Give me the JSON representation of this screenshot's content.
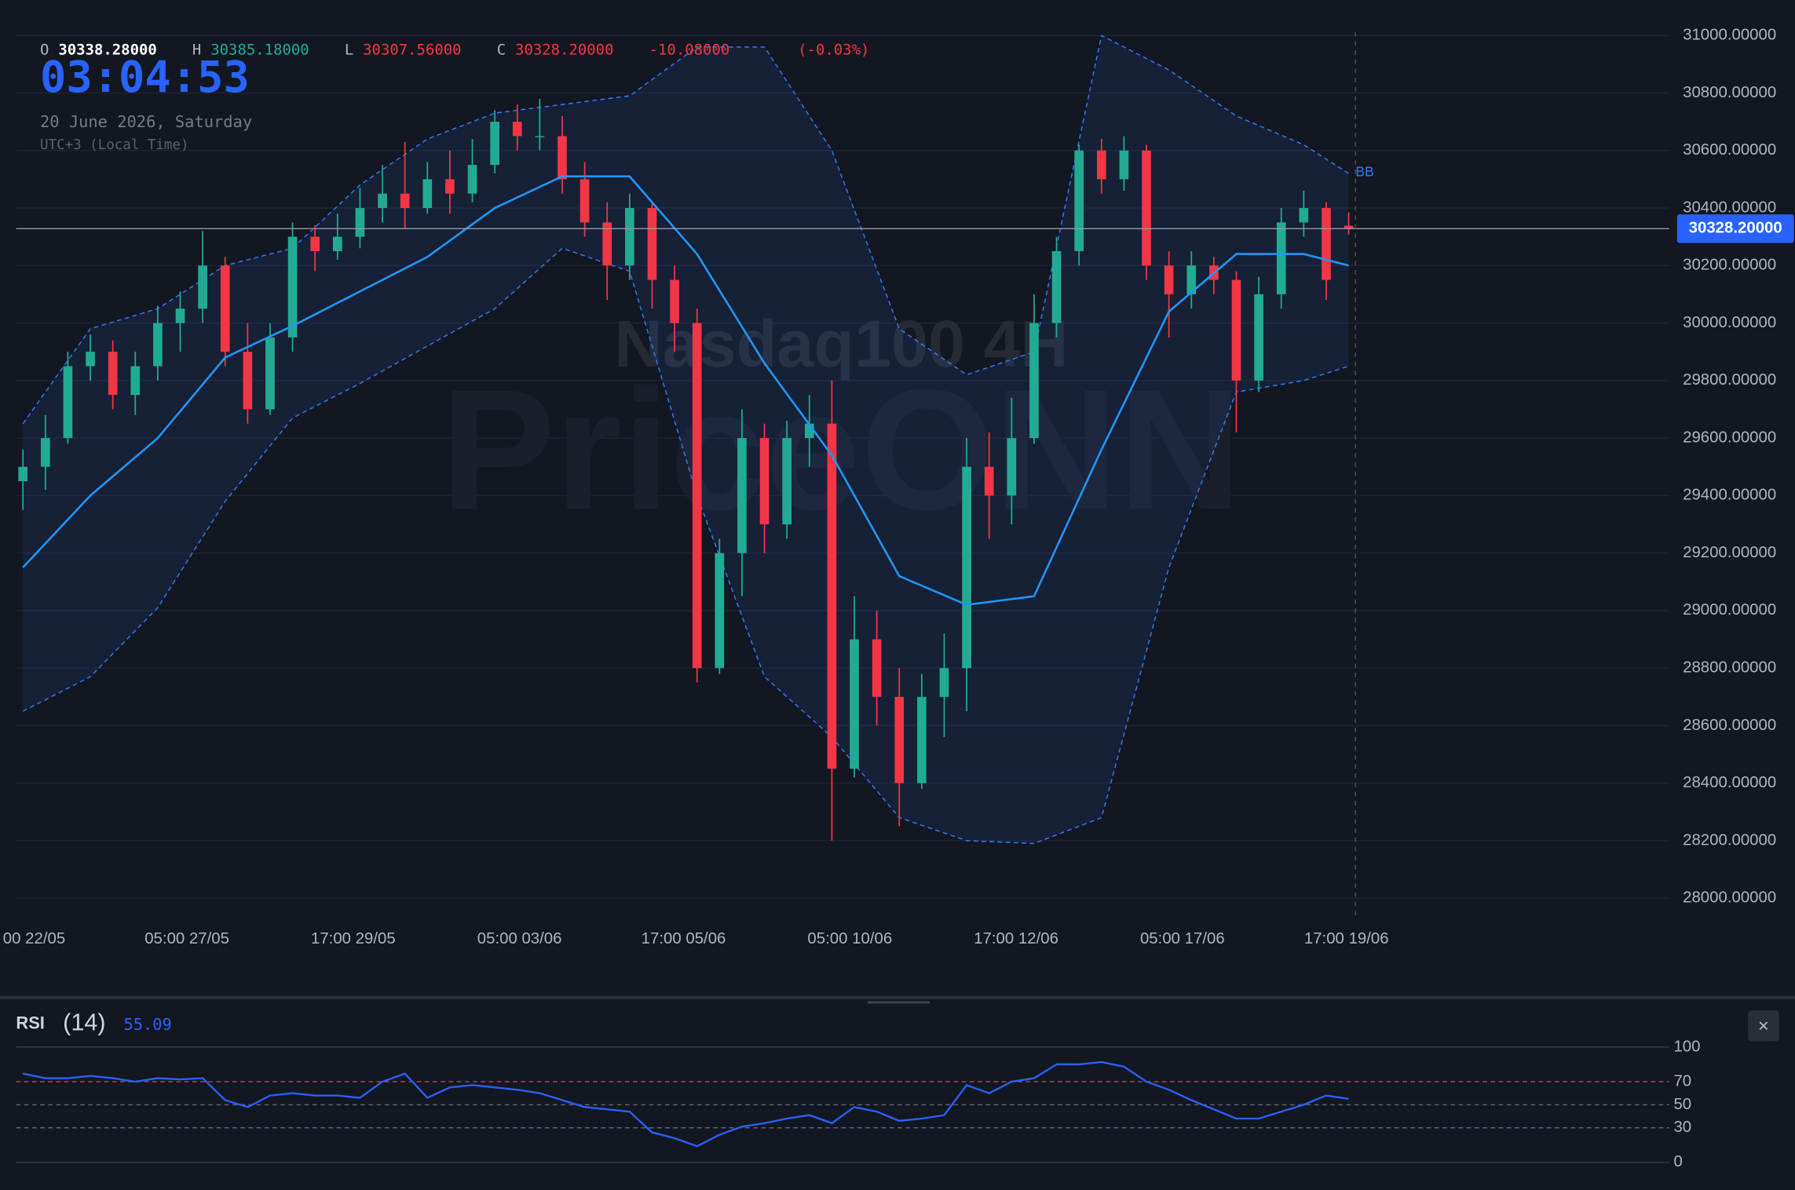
{
  "header": {
    "o_label": "O",
    "open": "30338.28000",
    "h_label": "H",
    "high": "30385.18000",
    "l_label": "L",
    "low": "30307.56000",
    "c_label": "C",
    "close": "30328.20000",
    "change": "-10.08000",
    "change_pct": "(-0.03%)",
    "clock": "03:04:53",
    "date": "20 June 2026, Saturday",
    "timezone": "UTC+3 (Local Time)",
    "close_button": "×"
  },
  "chart_data": [
    {
      "type": "candlestick",
      "title": "Nasdaq100 4H",
      "watermark": "PriceONN",
      "colors": {
        "up": "#22ab94",
        "down": "#f23645"
      },
      "xlim": [
        -1.02,
        73.36
      ],
      "ylim": [
        27940,
        31012
      ],
      "grid": true,
      "xticks": [
        {
          "value": 0.5,
          "label": "00 22/05"
        },
        {
          "value": 7.3,
          "label": "05:00 27/05"
        },
        {
          "value": 14.7,
          "label": "17:00 29/05"
        },
        {
          "value": 22.1,
          "label": "05:00 03/06"
        },
        {
          "value": 29.4,
          "label": "17:00 05/06"
        },
        {
          "value": 36.8,
          "label": "05:00 10/06"
        },
        {
          "value": 44.2,
          "label": "17:00 12/06"
        },
        {
          "value": 51.6,
          "label": "05:00 17/06"
        },
        {
          "value": 58.9,
          "label": "17:00 19/06"
        }
      ],
      "yticks": [
        {
          "value": 28000,
          "label": "28000.00000"
        },
        {
          "value": 28200,
          "label": "28200.00000"
        },
        {
          "value": 28400,
          "label": "28400.00000"
        },
        {
          "value": 28600,
          "label": "28600.00000"
        },
        {
          "value": 28800,
          "label": "28800.00000"
        },
        {
          "value": 29000,
          "label": "29000.00000"
        },
        {
          "value": 29200,
          "label": "29200.00000"
        },
        {
          "value": 29400,
          "label": "29400.00000"
        },
        {
          "value": 29600,
          "label": "29600.00000"
        },
        {
          "value": 29800,
          "label": "29800.00000"
        },
        {
          "value": 30000,
          "label": "30000.00000"
        },
        {
          "value": 30200,
          "label": "30200.00000"
        },
        {
          "value": 30400,
          "label": "30400.00000"
        },
        {
          "value": 30600,
          "label": "30600.00000"
        },
        {
          "value": 30800,
          "label": "30800.00000"
        },
        {
          "value": 31000,
          "label": "31000.00000"
        }
      ],
      "candles": [
        [
          29450,
          29560,
          29350,
          29500
        ],
        [
          29500,
          29680,
          29420,
          29600
        ],
        [
          29600,
          29900,
          29580,
          29850
        ],
        [
          29850,
          29960,
          29800,
          29900
        ],
        [
          29900,
          29940,
          29700,
          29750
        ],
        [
          29750,
          29900,
          29680,
          29850
        ],
        [
          29850,
          30060,
          29800,
          30000
        ],
        [
          30000,
          30110,
          29900,
          30050
        ],
        [
          30050,
          30320,
          30000,
          30200
        ],
        [
          30200,
          30230,
          29850,
          29900
        ],
        [
          29900,
          30000,
          29650,
          29700
        ],
        [
          29700,
          30000,
          29680,
          29950
        ],
        [
          29950,
          30350,
          29900,
          30300
        ],
        [
          30300,
          30340,
          30180,
          30250
        ],
        [
          30250,
          30380,
          30220,
          30300
        ],
        [
          30300,
          30470,
          30260,
          30400
        ],
        [
          30400,
          30550,
          30350,
          30450
        ],
        [
          30450,
          30630,
          30330,
          30400
        ],
        [
          30400,
          30560,
          30380,
          30500
        ],
        [
          30500,
          30600,
          30380,
          30450
        ],
        [
          30450,
          30640,
          30420,
          30550
        ],
        [
          30550,
          30740,
          30520,
          30700
        ],
        [
          30700,
          30760,
          30600,
          30650
        ],
        [
          30650,
          30780,
          30600,
          30650
        ],
        [
          30650,
          30720,
          30450,
          30500
        ],
        [
          30500,
          30560,
          30300,
          30350
        ],
        [
          30350,
          30420,
          30080,
          30200
        ],
        [
          30200,
          30450,
          30150,
          30400
        ],
        [
          30400,
          30420,
          30050,
          30150
        ],
        [
          30150,
          30200,
          29900,
          30000
        ],
        [
          30000,
          30050,
          28750,
          28800
        ],
        [
          28800,
          29250,
          28780,
          29200
        ],
        [
          29200,
          29700,
          29050,
          29600
        ],
        [
          29600,
          29650,
          29200,
          29300
        ],
        [
          29300,
          29660,
          29250,
          29600
        ],
        [
          29600,
          29750,
          29500,
          29650
        ],
        [
          29650,
          29800,
          28200,
          28450
        ],
        [
          28450,
          29050,
          28420,
          28900
        ],
        [
          28900,
          29000,
          28600,
          28700
        ],
        [
          28700,
          28800,
          28250,
          28400
        ],
        [
          28400,
          28780,
          28380,
          28700
        ],
        [
          28700,
          28920,
          28560,
          28800
        ],
        [
          28800,
          29600,
          28650,
          29500
        ],
        [
          29500,
          29620,
          29250,
          29400
        ],
        [
          29400,
          29740,
          29300,
          29600
        ],
        [
          29600,
          30100,
          29580,
          30000
        ],
        [
          30000,
          30300,
          29950,
          30250
        ],
        [
          30250,
          30620,
          30200,
          30600
        ],
        [
          30600,
          30640,
          30450,
          30500
        ],
        [
          30500,
          30650,
          30460,
          30600
        ],
        [
          30600,
          30620,
          30150,
          30200
        ],
        [
          30200,
          30250,
          29950,
          30100
        ],
        [
          30100,
          30250,
          30050,
          30200
        ],
        [
          30200,
          30230,
          30100,
          30150
        ],
        [
          30150,
          30180,
          29620,
          29800
        ],
        [
          29800,
          30160,
          29760,
          30100
        ],
        [
          30100,
          30400,
          30050,
          30350
        ],
        [
          30350,
          30460,
          30300,
          30400
        ],
        [
          30400,
          30420,
          30080,
          30150
        ],
        [
          30338.28,
          30385.18,
          30307.56,
          30328.2
        ]
      ],
      "bands": {
        "name": "BB",
        "color": "#3179f5",
        "middle_color": "#2196f3",
        "x": [
          0,
          3,
          6,
          9,
          12,
          15,
          18,
          21,
          24,
          27,
          30,
          33,
          36,
          39,
          42,
          45,
          48,
          51,
          54,
          57,
          59
        ],
        "upper": [
          29650,
          29980,
          30050,
          30200,
          30260,
          30480,
          30640,
          30730,
          30760,
          30790,
          30960,
          30960,
          30600,
          29980,
          29820,
          29900,
          31000,
          30880,
          30720,
          30620,
          30520
        ],
        "middle": [
          29150,
          29400,
          29600,
          29880,
          29990,
          30110,
          30230,
          30400,
          30510,
          30510,
          30240,
          29860,
          29540,
          29120,
          29020,
          29050,
          29560,
          30040,
          30240,
          30240,
          30200
        ],
        "lower": [
          28650,
          28770,
          29010,
          29380,
          29670,
          29790,
          29920,
          30050,
          30260,
          30180,
          29400,
          28770,
          28560,
          28280,
          28200,
          28190,
          28280,
          29150,
          29760,
          29800,
          29850
        ]
      },
      "last_price": {
        "value": 30328.2,
        "label": "30328.20000"
      }
    },
    {
      "type": "line",
      "name": "RSI",
      "period_label": "(14)",
      "value_label": "55.09",
      "color": "#2962ff",
      "xlim": [
        -1.02,
        73.36
      ],
      "ylim": [
        -14,
        110
      ],
      "yticks": [
        0,
        30,
        50,
        70,
        100
      ],
      "grid_colors": [
        "#363a45",
        "#4a6a75",
        "#5d6270",
        "#b0414b",
        "#363a45"
      ],
      "grid_dash": [
        false,
        true,
        true,
        true,
        false
      ],
      "x": [
        0,
        1,
        2,
        3,
        4,
        5,
        6,
        7,
        8,
        9,
        10,
        11,
        12,
        13,
        14,
        15,
        16,
        17,
        18,
        19,
        20,
        21,
        22,
        23,
        24,
        25,
        26,
        27,
        28,
        29,
        30,
        31,
        32,
        33,
        34,
        35,
        36,
        37,
        38,
        39,
        40,
        41,
        42,
        43,
        44,
        45,
        46,
        47,
        48,
        49,
        50,
        51,
        52,
        53,
        54,
        55,
        56,
        57,
        58,
        59
      ],
      "values": [
        77,
        73,
        73,
        75,
        73,
        70,
        73,
        72,
        73,
        54,
        48,
        58,
        60,
        58,
        58,
        56,
        70,
        77,
        56,
        65,
        67,
        65,
        63,
        60,
        54,
        48,
        46,
        44,
        26,
        21,
        14,
        24,
        31,
        34,
        38,
        41,
        34,
        48,
        44,
        36,
        38,
        41,
        67,
        60,
        70,
        73,
        85,
        85,
        87,
        83,
        70,
        63,
        54,
        46,
        38,
        38,
        44,
        50,
        58,
        55.09
      ]
    }
  ]
}
